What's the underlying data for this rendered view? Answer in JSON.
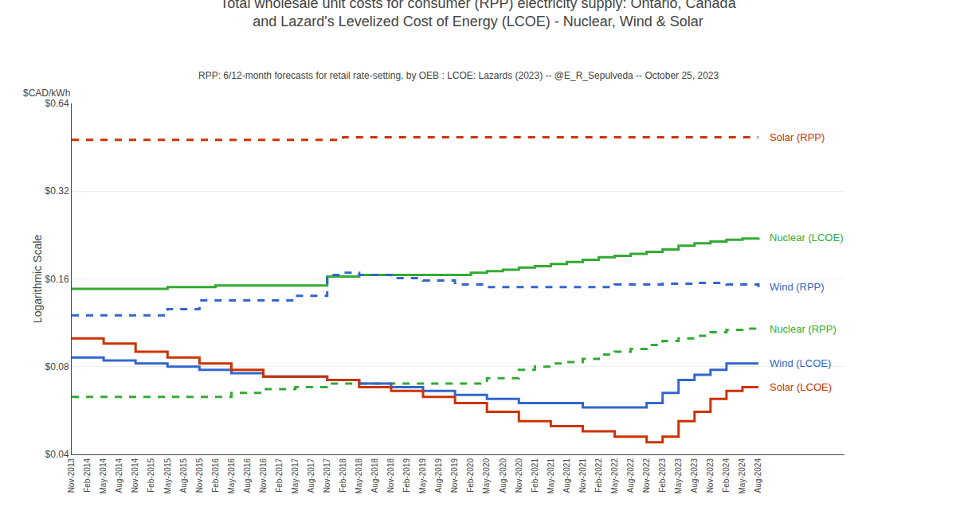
{
  "chart_data": {
    "type": "line",
    "title": "Total wholesale unit costs for consumer (RPP) electricity supply: Ontario, Canada\nand Lazard's Levelized Cost of Energy (LCOE) - Nuclear, Wind & Solar",
    "subtitle": "RPP: 6/12-month forecasts for retail rate-setting, by OEB : LCOE: Lazards (2023) -- @E_R_Sepulveda -- October 25, 2023",
    "ylabel": "Logarithmic Scale",
    "annotations": [
      "$CAD/kWh"
    ],
    "log": "y",
    "grid": true,
    "ylim": [
      0.04,
      0.64
    ],
    "yticks": [
      {
        "value": 0.04,
        "label": "$0.04"
      },
      {
        "value": 0.08,
        "label": "$0.08"
      },
      {
        "value": 0.16,
        "label": "$0.16"
      },
      {
        "value": 0.32,
        "label": "$0.32"
      },
      {
        "value": 0.64,
        "label": "$0.64"
      }
    ],
    "categories": [
      "Nov-2013",
      "Feb-2014",
      "May-2014",
      "Aug-2014",
      "Nov-2014",
      "Feb-2015",
      "May-2015",
      "Aug-2015",
      "Nov-2015",
      "Feb-2016",
      "May-2016",
      "Aug-2016",
      "Nov-2016",
      "Feb-2017",
      "May-2017",
      "Aug-2017",
      "Nov-2017",
      "Feb-2018",
      "May-2018",
      "Aug-2018",
      "Nov-2018",
      "Feb-2019",
      "May-2019",
      "Aug-2019",
      "Nov-2019",
      "Feb-2020",
      "May-2020",
      "Aug-2020",
      "Nov-2020",
      "Feb-2021",
      "May-2021",
      "Aug-2021",
      "Nov-2021",
      "Feb-2022",
      "May-2022",
      "Aug-2022",
      "Nov-2022",
      "Feb-2023",
      "May-2023",
      "Aug-2023",
      "Nov-2023",
      "Feb-2024",
      "May-2024",
      "Aug-2024"
    ],
    "series": [
      {
        "name": "Solar (RPP)",
        "color": "#cc3300",
        "line_style": "dashed",
        "values": [
          0.48,
          0.48,
          0.48,
          0.48,
          0.48,
          0.48,
          0.48,
          0.48,
          0.48,
          0.48,
          0.48,
          0.48,
          0.48,
          0.48,
          0.48,
          0.48,
          0.48,
          0.49,
          0.49,
          0.49,
          0.49,
          0.49,
          0.49,
          0.49,
          0.49,
          0.49,
          0.49,
          0.49,
          0.49,
          0.49,
          0.49,
          0.49,
          0.49,
          0.49,
          0.49,
          0.49,
          0.49,
          0.49,
          0.49,
          0.49,
          0.49,
          0.49,
          0.49,
          0.49
        ]
      },
      {
        "name": "Nuclear (LCOE)",
        "color": "#33aa33",
        "line_style": "solid",
        "values": [
          0.148,
          0.148,
          0.148,
          0.148,
          0.148,
          0.148,
          0.15,
          0.15,
          0.15,
          0.152,
          0.152,
          0.152,
          0.152,
          0.152,
          0.152,
          0.152,
          0.163,
          0.163,
          0.165,
          0.165,
          0.165,
          0.165,
          0.165,
          0.165,
          0.165,
          0.168,
          0.17,
          0.172,
          0.175,
          0.177,
          0.18,
          0.183,
          0.186,
          0.19,
          0.192,
          0.195,
          0.198,
          0.202,
          0.208,
          0.212,
          0.215,
          0.218,
          0.22,
          0.222
        ]
      },
      {
        "name": "Wind (RPP)",
        "color": "#3366cc",
        "line_style": "dashed",
        "values": [
          0.12,
          0.12,
          0.12,
          0.12,
          0.12,
          0.12,
          0.126,
          0.126,
          0.135,
          0.135,
          0.135,
          0.135,
          0.135,
          0.135,
          0.14,
          0.14,
          0.165,
          0.168,
          0.165,
          0.165,
          0.161,
          0.161,
          0.158,
          0.158,
          0.153,
          0.153,
          0.15,
          0.15,
          0.15,
          0.15,
          0.15,
          0.15,
          0.15,
          0.15,
          0.153,
          0.153,
          0.153,
          0.154,
          0.154,
          0.155,
          0.155,
          0.153,
          0.153,
          0.15
        ]
      },
      {
        "name": "Nuclear (RPP)",
        "color": "#33aa33",
        "line_style": "dashed",
        "values": [
          0.063,
          0.063,
          0.063,
          0.063,
          0.063,
          0.063,
          0.063,
          0.063,
          0.063,
          0.063,
          0.065,
          0.065,
          0.067,
          0.067,
          0.068,
          0.068,
          0.07,
          0.07,
          0.07,
          0.07,
          0.07,
          0.07,
          0.07,
          0.07,
          0.07,
          0.07,
          0.073,
          0.073,
          0.078,
          0.08,
          0.082,
          0.083,
          0.085,
          0.088,
          0.09,
          0.092,
          0.095,
          0.098,
          0.1,
          0.102,
          0.105,
          0.107,
          0.108,
          0.108
        ]
      },
      {
        "name": "Wind (LCOE)",
        "color": "#3366cc",
        "line_style": "solid",
        "values": [
          0.086,
          0.086,
          0.084,
          0.084,
          0.082,
          0.082,
          0.08,
          0.08,
          0.078,
          0.078,
          0.076,
          0.076,
          0.074,
          0.074,
          0.074,
          0.074,
          0.072,
          0.072,
          0.07,
          0.07,
          0.068,
          0.068,
          0.066,
          0.066,
          0.064,
          0.064,
          0.062,
          0.062,
          0.06,
          0.06,
          0.06,
          0.06,
          0.058,
          0.058,
          0.058,
          0.058,
          0.06,
          0.065,
          0.072,
          0.075,
          0.078,
          0.082,
          0.082,
          0.082
        ]
      },
      {
        "name": "Solar (LCOE)",
        "color": "#cc3300",
        "line_style": "solid",
        "values": [
          0.1,
          0.1,
          0.096,
          0.096,
          0.09,
          0.09,
          0.086,
          0.086,
          0.082,
          0.082,
          0.078,
          0.078,
          0.074,
          0.074,
          0.074,
          0.074,
          0.072,
          0.072,
          0.068,
          0.068,
          0.066,
          0.066,
          0.063,
          0.063,
          0.06,
          0.06,
          0.056,
          0.056,
          0.052,
          0.052,
          0.05,
          0.05,
          0.048,
          0.048,
          0.046,
          0.046,
          0.044,
          0.046,
          0.052,
          0.056,
          0.062,
          0.066,
          0.068,
          0.068
        ]
      }
    ]
  }
}
